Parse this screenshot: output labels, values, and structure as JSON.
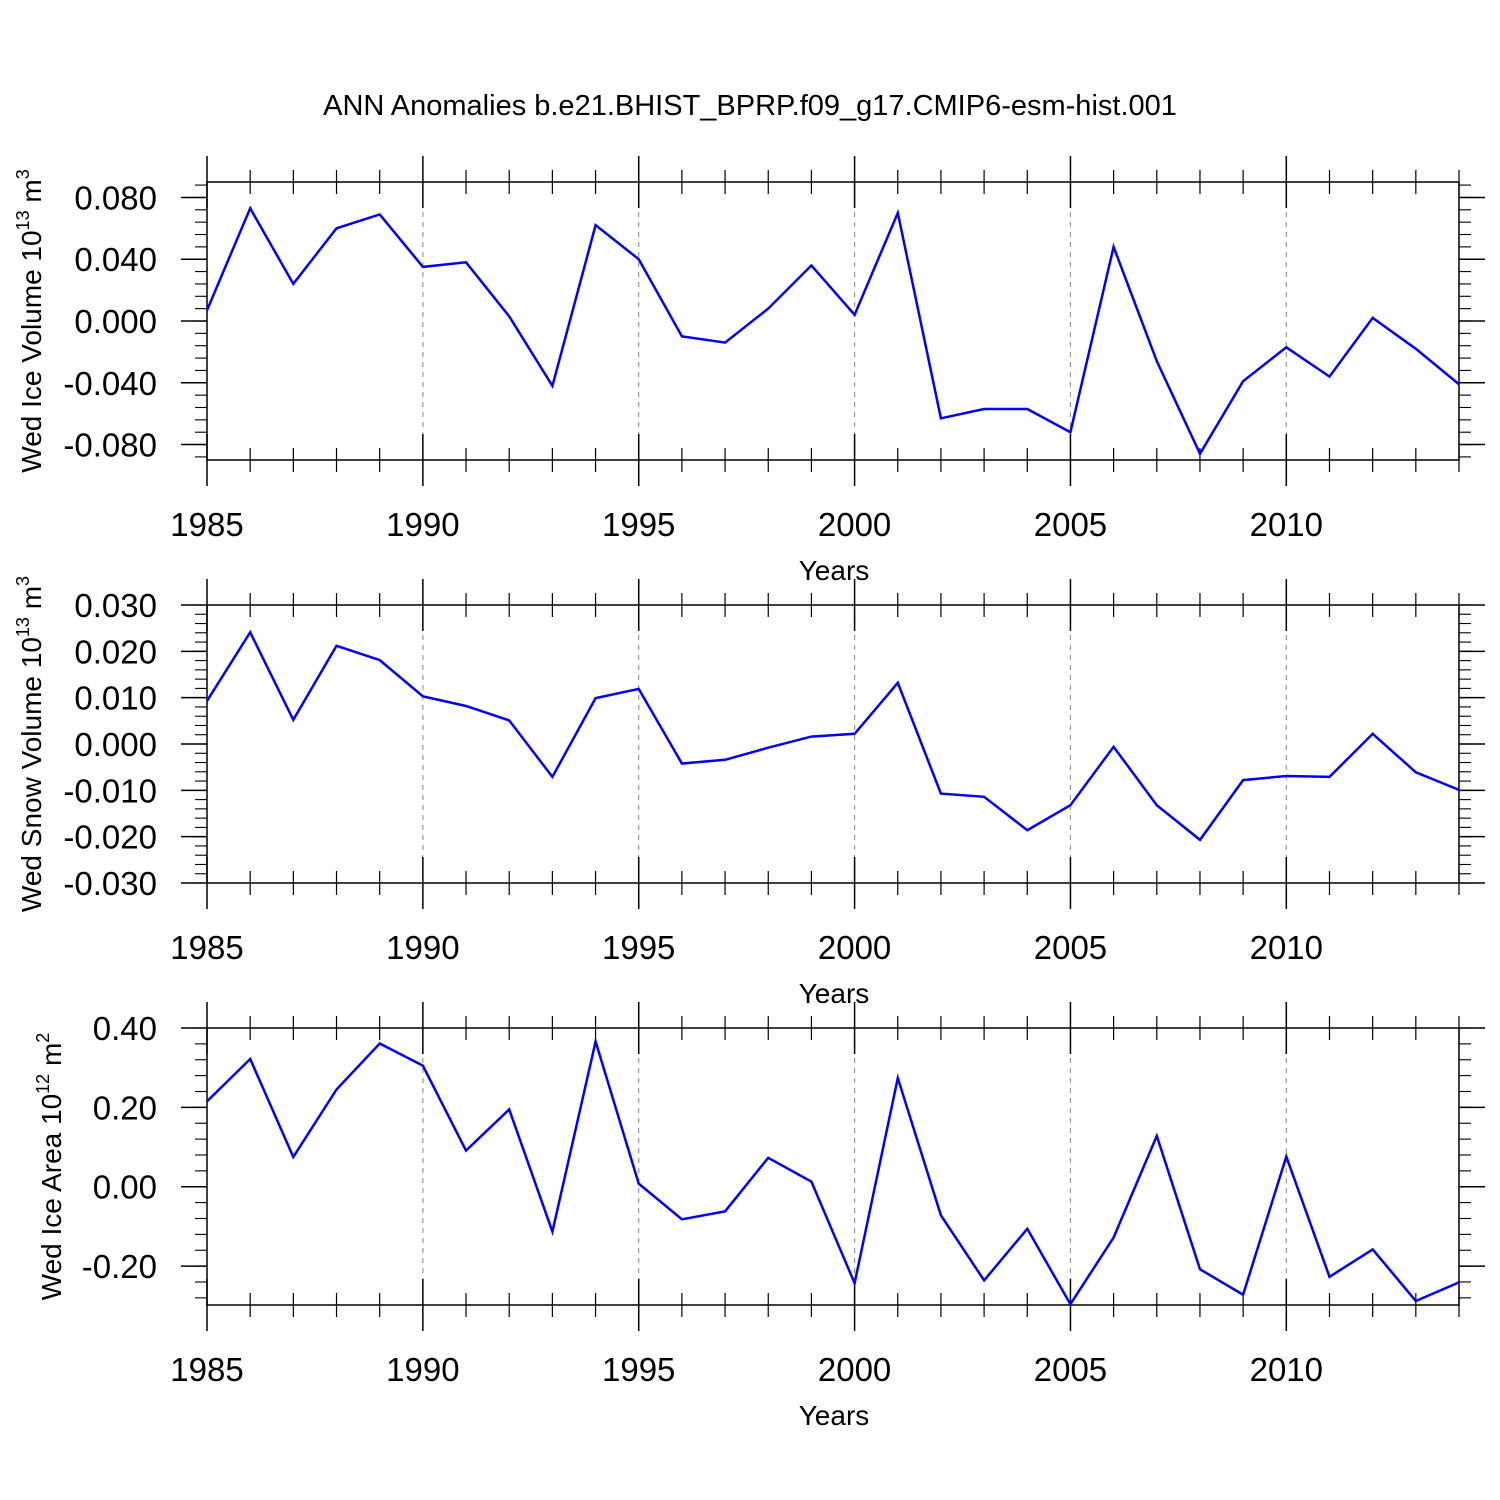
{
  "title": "ANN Anomalies b.e21.BHIST_BPRP.f09_g17.CMIP6-esm-hist.001",
  "line_color": "#0000ff",
  "chart_data": [
    {
      "type": "line",
      "ylabel_main": "Wed Ice Volume 10",
      "ylabel_exp": "13",
      "ylabel_unit": " m",
      "ylabel_unit_exp": "3",
      "xlabel": "Years",
      "xlim": [
        1985,
        2014
      ],
      "ylim": [
        -0.09,
        0.09
      ],
      "xticks": [
        1985,
        1990,
        1995,
        2000,
        2005,
        2010
      ],
      "yticks": [
        0.08,
        0.04,
        0.0,
        -0.04,
        -0.08
      ],
      "ytick_labels": [
        "0.080",
        "0.040",
        "0.000",
        "-0.040",
        "-0.080"
      ],
      "grid": "vertical dashed at major x ticks",
      "series": [
        {
          "x": [
            1985,
            1986,
            1987,
            1988,
            1989,
            1990,
            1991,
            1992,
            1993,
            1994,
            1995,
            1996,
            1997,
            1998,
            1999,
            2000,
            2001,
            2002,
            2003,
            2004,
            2005,
            2006,
            2007,
            2008,
            2009,
            2010,
            2011,
            2012,
            2013,
            2014
          ],
          "values": [
            0.007,
            0.073,
            0.024,
            0.06,
            0.069,
            0.035,
            0.038,
            0.003,
            -0.042,
            0.062,
            0.04,
            -0.01,
            -0.014,
            0.008,
            0.036,
            0.004,
            0.07,
            -0.063,
            -0.057,
            -0.057,
            -0.072,
            0.048,
            -0.026,
            -0.086,
            -0.039,
            -0.017,
            -0.036,
            0.002,
            -0.018,
            -0.041
          ]
        }
      ]
    },
    {
      "type": "line",
      "ylabel_main": "Wed Snow Volume 10",
      "ylabel_exp": "13",
      "ylabel_unit": " m",
      "ylabel_unit_exp": "3",
      "xlabel": "Years",
      "xlim": [
        1985,
        2014
      ],
      "ylim": [
        -0.03,
        0.03
      ],
      "xticks": [
        1985,
        1990,
        1995,
        2000,
        2005,
        2010
      ],
      "yticks": [
        0.03,
        0.02,
        0.01,
        0.0,
        -0.01,
        -0.02,
        -0.03
      ],
      "ytick_labels": [
        "0.030",
        "0.020",
        "0.010",
        "0.000",
        "-0.010",
        "-0.020",
        "-0.030"
      ],
      "grid": "vertical dashed at major x ticks",
      "series": [
        {
          "x": [
            1985,
            1986,
            1987,
            1988,
            1989,
            1990,
            1991,
            1992,
            1993,
            1994,
            1995,
            1996,
            1997,
            1998,
            1999,
            2000,
            2001,
            2002,
            2003,
            2004,
            2005,
            2006,
            2007,
            2008,
            2009,
            2010,
            2011,
            2012,
            2013,
            2014
          ],
          "values": [
            0.0093,
            0.0241,
            0.0052,
            0.0212,
            0.0181,
            0.0103,
            0.0082,
            0.0051,
            -0.0071,
            0.0099,
            0.0119,
            -0.0042,
            -0.0034,
            -0.0008,
            0.0016,
            0.0022,
            0.0132,
            -0.0107,
            -0.0114,
            -0.0186,
            -0.0132,
            -0.0006,
            -0.0132,
            -0.0207,
            -0.0078,
            -0.0069,
            -0.0071,
            0.0022,
            -0.0061,
            -0.0099
          ]
        }
      ]
    },
    {
      "type": "line",
      "ylabel_main": "Wed Ice Area 10",
      "ylabel_exp": "12",
      "ylabel_unit": " m",
      "ylabel_unit_exp": "2",
      "xlabel": "Years",
      "xlim": [
        1985,
        2014
      ],
      "ylim": [
        -0.298,
        0.4
      ],
      "xticks": [
        1985,
        1990,
        1995,
        2000,
        2005,
        2010
      ],
      "yticks": [
        0.4,
        0.2,
        0.0,
        -0.2
      ],
      "ytick_labels": [
        "0.40",
        "0.20",
        "0.00",
        "-0.20"
      ],
      "grid": "vertical dashed at major x ticks",
      "series": [
        {
          "x": [
            1985,
            1986,
            1987,
            1988,
            1989,
            1990,
            1991,
            1992,
            1993,
            1994,
            1995,
            1996,
            1997,
            1998,
            1999,
            2000,
            2001,
            2002,
            2003,
            2004,
            2005,
            2006,
            2007,
            2008,
            2009,
            2010,
            2011,
            2012,
            2013,
            2014
          ],
          "values": [
            0.215,
            0.322,
            0.075,
            0.245,
            0.361,
            0.305,
            0.091,
            0.195,
            -0.113,
            0.366,
            0.008,
            -0.082,
            -0.062,
            0.073,
            0.013,
            -0.243,
            0.274,
            -0.072,
            -0.236,
            -0.106,
            -0.296,
            -0.128,
            0.128,
            -0.208,
            -0.272,
            0.076,
            -0.227,
            -0.158,
            -0.288,
            -0.241
          ]
        }
      ]
    }
  ]
}
